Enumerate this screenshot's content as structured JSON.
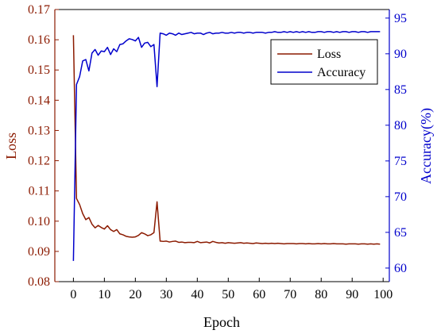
{
  "chart_data": {
    "type": "line",
    "xlabel": "Epoch",
    "ylabel_left": "Loss",
    "ylabel_right": "Accuracy(%)",
    "xlim": [
      -6,
      102
    ],
    "ylim_left": [
      0.08,
      0.17
    ],
    "ylim_right": [
      58.1,
      96.2
    ],
    "x_ticks": [
      0,
      10,
      20,
      30,
      40,
      50,
      60,
      70,
      80,
      90,
      100
    ],
    "y_left_ticks": [
      0.08,
      0.09,
      0.1,
      0.11,
      0.12,
      0.13,
      0.14,
      0.15,
      0.16,
      0.17
    ],
    "y_right_ticks": [
      60,
      65,
      70,
      75,
      80,
      85,
      90,
      95
    ],
    "y_left_tick_labels": [
      "0.08",
      "0.09",
      "0.10",
      "0.11",
      "0.12",
      "0.13",
      "0.14",
      "0.15",
      "0.16",
      "0.17"
    ],
    "grid": false,
    "legend_position": "top-right",
    "colors": {
      "loss": "#8b1a00",
      "accuracy": "#0000cc",
      "frame": "#000000"
    },
    "series": [
      {
        "name": "Loss",
        "axis": "left",
        "x": [
          0,
          1,
          2,
          3,
          4,
          5,
          6,
          7,
          8,
          9,
          10,
          11,
          12,
          13,
          14,
          15,
          16,
          17,
          18,
          19,
          20,
          21,
          22,
          23,
          24,
          25,
          26,
          27,
          28,
          29,
          30,
          31,
          32,
          33,
          34,
          35,
          36,
          37,
          38,
          39,
          40,
          41,
          42,
          43,
          44,
          45,
          46,
          47,
          48,
          49,
          50,
          51,
          52,
          53,
          54,
          55,
          56,
          57,
          58,
          59,
          60,
          61,
          62,
          63,
          64,
          65,
          66,
          67,
          68,
          69,
          70,
          71,
          72,
          73,
          74,
          75,
          76,
          77,
          78,
          79,
          80,
          81,
          82,
          83,
          84,
          85,
          86,
          87,
          88,
          89,
          90,
          91,
          92,
          93,
          94,
          95,
          96,
          97,
          98,
          99
        ],
        "values": [
          0.1615,
          0.1075,
          0.1055,
          0.1025,
          0.1005,
          0.1012,
          0.099,
          0.0978,
          0.0986,
          0.0979,
          0.0974,
          0.0985,
          0.0972,
          0.0966,
          0.0972,
          0.0958,
          0.0955,
          0.095,
          0.0948,
          0.0947,
          0.0948,
          0.0953,
          0.0962,
          0.0958,
          0.0952,
          0.0955,
          0.0962,
          0.1064,
          0.0934,
          0.0933,
          0.0934,
          0.0931,
          0.0933,
          0.0934,
          0.093,
          0.0931,
          0.0929,
          0.093,
          0.093,
          0.0929,
          0.0933,
          0.0929,
          0.093,
          0.0931,
          0.0928,
          0.0933,
          0.093,
          0.0928,
          0.0929,
          0.0927,
          0.0929,
          0.0928,
          0.0927,
          0.0928,
          0.0929,
          0.0927,
          0.0928,
          0.0927,
          0.0926,
          0.0928,
          0.0927,
          0.0926,
          0.0927,
          0.0926,
          0.0927,
          0.0926,
          0.0927,
          0.0926,
          0.0925,
          0.0926,
          0.0926,
          0.0926,
          0.0925,
          0.0926,
          0.0926,
          0.0925,
          0.0926,
          0.0925,
          0.0925,
          0.0926,
          0.0925,
          0.0926,
          0.0925,
          0.0925,
          0.0926,
          0.0925,
          0.0925,
          0.0925,
          0.0924,
          0.0925,
          0.0925,
          0.0925,
          0.0924,
          0.0925,
          0.0925,
          0.0924,
          0.0925,
          0.0924,
          0.0925,
          0.0924
        ]
      },
      {
        "name": "Accuracy",
        "axis": "right",
        "x": [
          0,
          1,
          2,
          3,
          4,
          5,
          6,
          7,
          8,
          9,
          10,
          11,
          12,
          13,
          14,
          15,
          16,
          17,
          18,
          19,
          20,
          21,
          22,
          23,
          24,
          25,
          26,
          27,
          28,
          29,
          30,
          31,
          32,
          33,
          34,
          35,
          36,
          37,
          38,
          39,
          40,
          41,
          42,
          43,
          44,
          45,
          46,
          47,
          48,
          49,
          50,
          51,
          52,
          53,
          54,
          55,
          56,
          57,
          58,
          59,
          60,
          61,
          62,
          63,
          64,
          65,
          66,
          67,
          68,
          69,
          70,
          71,
          72,
          73,
          74,
          75,
          76,
          77,
          78,
          79,
          80,
          81,
          82,
          83,
          84,
          85,
          86,
          87,
          88,
          89,
          90,
          91,
          92,
          93,
          94,
          95,
          96,
          97,
          98,
          99
        ],
        "values": [
          61.0,
          85.7,
          86.8,
          89.0,
          89.2,
          87.6,
          90.1,
          90.6,
          89.8,
          90.4,
          90.3,
          90.9,
          89.9,
          90.7,
          90.3,
          91.3,
          91.4,
          91.8,
          92.1,
          92.0,
          91.8,
          92.3,
          90.9,
          91.5,
          91.6,
          91.0,
          91.3,
          85.4,
          92.9,
          92.8,
          92.6,
          92.9,
          92.8,
          92.6,
          92.9,
          92.7,
          92.8,
          92.9,
          93.0,
          92.8,
          92.9,
          92.9,
          92.7,
          92.9,
          93.0,
          92.8,
          92.9,
          92.9,
          93.0,
          92.9,
          92.9,
          93.0,
          92.9,
          93.0,
          93.0,
          92.9,
          93.0,
          93.0,
          92.9,
          93.0,
          93.0,
          93.0,
          92.9,
          93.0,
          93.0,
          93.1,
          93.0,
          93.0,
          93.1,
          93.0,
          93.1,
          93.0,
          93.1,
          93.0,
          93.1,
          93.0,
          93.1,
          93.0,
          93.0,
          93.1,
          93.1,
          93.0,
          93.1,
          93.1,
          93.0,
          93.1,
          93.0,
          93.1,
          93.1,
          93.0,
          93.1,
          93.1,
          93.0,
          93.1,
          93.1,
          93.0,
          93.1,
          93.1,
          93.1,
          93.1
        ]
      }
    ]
  }
}
